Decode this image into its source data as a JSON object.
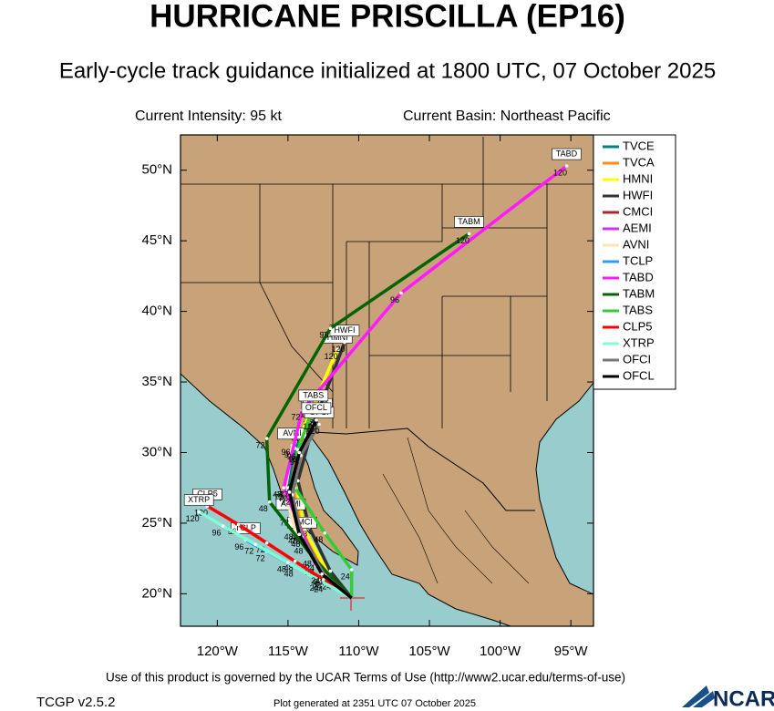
{
  "header": {
    "title": "HURRICANE PRISCILLA (EP16)",
    "subtitle": "Early-cycle track guidance initialized at 1800 UTC, 07 October 2025",
    "intensity": "Current Intensity: 95 kt",
    "basin": "Current Basin: Northeast Pacific"
  },
  "map": {
    "xlim": [
      -122.6,
      -93.4
    ],
    "ylim": [
      17.7,
      52.5
    ],
    "xticks": [
      {
        "value": -120,
        "label": "120°W"
      },
      {
        "value": -115,
        "label": "115°W"
      },
      {
        "value": -110,
        "label": "110°W"
      },
      {
        "value": -105,
        "label": "105°W"
      },
      {
        "value": -100,
        "label": "100°W"
      },
      {
        "value": -95,
        "label": "95°W"
      }
    ],
    "yticks": [
      {
        "value": 20,
        "label": "20°N"
      },
      {
        "value": 25,
        "label": "25°N"
      },
      {
        "value": 30,
        "label": "30°N"
      },
      {
        "value": 35,
        "label": "35°N"
      },
      {
        "value": 40,
        "label": "40°N"
      },
      {
        "value": 45,
        "label": "45°N"
      },
      {
        "value": 50,
        "label": "50°N"
      }
    ],
    "series": [
      {
        "name": "TVCE",
        "color": "#008080",
        "lon": [
          -110.5,
          -112.5,
          -114,
          -115,
          -114.5,
          -113
        ],
        "lat": [
          19.7,
          21.5,
          24.5,
          27.5,
          30.3,
          32.5
        ],
        "hours": [
          0,
          24,
          48,
          72,
          96,
          120
        ]
      },
      {
        "name": "TVCA",
        "color": "#ff8c1a",
        "lon": [
          -110.5,
          -112.3,
          -113.8,
          -114.8,
          -114.3,
          -112.9
        ],
        "lat": [
          19.7,
          21.4,
          24.4,
          27.5,
          30.2,
          32.6
        ],
        "hours": [
          0,
          24,
          48,
          72,
          96,
          120
        ]
      },
      {
        "name": "HMNI",
        "color": "#ffff00",
        "lon": [
          -110.5,
          -112.2,
          -113.8,
          -114.5,
          -114,
          -111.5
        ],
        "lat": [
          19.7,
          21.5,
          24.5,
          28,
          31.5,
          37.3
        ],
        "hours": [
          0,
          24,
          48,
          72,
          96,
          120
        ]
      },
      {
        "name": "HWFI",
        "color": "#333333",
        "lon": [
          -110.5,
          -112,
          -113.5,
          -114.3,
          -113.2,
          -111
        ],
        "lat": [
          19.7,
          21.6,
          24.7,
          28,
          32,
          37.8
        ],
        "hours": [
          0,
          24,
          48,
          72,
          96,
          120
        ]
      },
      {
        "name": "CMCI",
        "color": "#a52a2a",
        "lon": [
          -110.5,
          -111.8,
          -113.2,
          -114
        ],
        "lat": [
          19.7,
          21,
          22.6,
          24.2
        ],
        "hours": [
          0,
          24,
          48,
          72
        ]
      },
      {
        "name": "AEMI",
        "color": "#cc33ff",
        "lon": [
          -110.5,
          -112.3,
          -113.8,
          -114.8
        ],
        "lat": [
          19.7,
          21.3,
          23.5,
          25.5
        ],
        "hours": [
          0,
          24,
          48,
          72
        ]
      },
      {
        "name": "AVNI",
        "color": "#ffe4b5",
        "lon": [
          -110.5,
          -112.5,
          -114.5,
          -115.2,
          -114.7
        ],
        "lat": [
          19.7,
          21.5,
          24.5,
          27.3,
          30.5
        ],
        "hours": [
          0,
          24,
          48,
          72,
          96
        ]
      },
      {
        "name": "TCLP",
        "color": "#3399ff",
        "lon": [
          -110.5,
          -112.4,
          -114.5,
          -116.5,
          -118
        ],
        "lat": [
          19.7,
          20.8,
          21.9,
          23,
          23.8
        ],
        "hours": [
          0,
          24,
          48,
          72,
          96
        ]
      },
      {
        "name": "TABD",
        "color": "#ff1aff",
        "lon": [
          -110.5,
          -113,
          -115.3,
          -114,
          -107,
          -95.3
        ],
        "lat": [
          19.7,
          22,
          27.5,
          33,
          41.3,
          50.3
        ],
        "hours": [
          0,
          24,
          48,
          72,
          96,
          120
        ]
      },
      {
        "name": "TABM",
        "color": "#006400",
        "lon": [
          -110.5,
          -113,
          -116.3,
          -116.5,
          -112,
          -102.2
        ],
        "lat": [
          19.7,
          22.3,
          26.5,
          31,
          38.8,
          45.5
        ],
        "hours": [
          0,
          24,
          48,
          72,
          96,
          120
        ]
      },
      {
        "name": "TABS",
        "color": "#33cc33",
        "lon": [
          -110.5,
          -110.5,
          -112.4,
          -114.5,
          -114.3,
          -113.2
        ],
        "lat": [
          19.7,
          21.7,
          24.3,
          27.5,
          30.2,
          33.2
        ],
        "hours": [
          0,
          24,
          48,
          72,
          96,
          120
        ]
      },
      {
        "name": "CLP5",
        "color": "#ff0000",
        "lon": [
          -110.5,
          -112.5,
          -114.5,
          -116.5,
          -118.5,
          -120.7
        ],
        "lat": [
          19.7,
          21,
          22.3,
          23.6,
          24.9,
          26.2
        ],
        "hours": [
          0,
          24,
          48,
          72,
          96,
          120
        ]
      },
      {
        "name": "XTRP",
        "color": "#7fffd4",
        "lon": [
          -110.5,
          -112.7,
          -115,
          -117.3,
          -119.6,
          -121.3
        ],
        "lat": [
          19.7,
          20.9,
          22.2,
          23.5,
          24.8,
          25.8
        ],
        "hours": [
          0,
          24,
          48,
          72,
          96,
          120
        ]
      },
      {
        "name": "OFCI",
        "color": "#777777",
        "lon": [
          -110.5,
          -112.4,
          -114,
          -114.7,
          -114.1,
          -112.8
        ],
        "lat": [
          19.7,
          21.3,
          24,
          27,
          29.8,
          32
        ],
        "hours": [
          0,
          24,
          48,
          72,
          96,
          120
        ]
      },
      {
        "name": "OFCL",
        "color": "#000000",
        "lon": [
          -110.5,
          -112.6,
          -114.2,
          -114.9,
          -114.2,
          -113
        ],
        "lat": [
          19.7,
          21.4,
          24.2,
          27.2,
          30,
          32.3
        ],
        "hours": [
          0,
          24,
          48,
          72,
          96,
          120
        ]
      }
    ]
  },
  "footer": {
    "terms": "Use of this product is governed by the UCAR Terms of Use (http://www2.ucar.edu/terms-of-use)",
    "version": "TCGP v2.5.2",
    "generated": "Plot generated at 2351 UTC   07 October 2025",
    "logo": "NCAR"
  }
}
